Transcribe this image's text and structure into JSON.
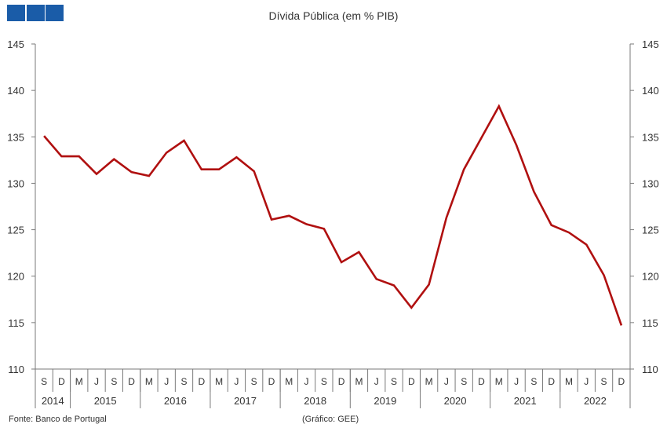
{
  "logo": {
    "color": "#1a5ca8"
  },
  "chart_data": {
    "type": "line",
    "title": "Dívida Pública (em % PIB)",
    "xlabel": "",
    "ylabel": "",
    "ylim": [
      110,
      145
    ],
    "yticks": [
      110,
      115,
      120,
      125,
      130,
      135,
      140,
      145
    ],
    "y_axis_both_sides": true,
    "grid": false,
    "line_color": "#b01010",
    "categories": [
      "S",
      "D",
      "M",
      "J",
      "S",
      "D",
      "M",
      "J",
      "S",
      "D",
      "M",
      "J",
      "S",
      "D",
      "M",
      "J",
      "S",
      "D",
      "M",
      "J",
      "S",
      "D",
      "M",
      "J",
      "S",
      "D",
      "M",
      "J",
      "S",
      "D",
      "M",
      "J",
      "S",
      "D"
    ],
    "years": [
      {
        "label": "2014",
        "span": 2
      },
      {
        "label": "2015",
        "span": 4
      },
      {
        "label": "2016",
        "span": 4
      },
      {
        "label": "2017",
        "span": 4
      },
      {
        "label": "2018",
        "span": 4
      },
      {
        "label": "2019",
        "span": 4
      },
      {
        "label": "2020",
        "span": 4
      },
      {
        "label": "2021",
        "span": 4
      },
      {
        "label": "2022",
        "span": 4
      }
    ],
    "series": [
      {
        "values": [
          135.1,
          132.9,
          132.9,
          131.0,
          132.6,
          131.2,
          130.8,
          133.3,
          134.6,
          131.5,
          131.5,
          132.8,
          131.3,
          126.1,
          126.5,
          125.6,
          125.1,
          121.5,
          122.6,
          119.7,
          119.0,
          116.6,
          119.1,
          126.3,
          131.5,
          134.9,
          138.3,
          134.1,
          129.1,
          125.5,
          124.7,
          123.4,
          120.1,
          114.7
        ]
      }
    ]
  },
  "footer": {
    "source": "Fonte: Banco de Portugal",
    "credit": "(Gráfico: GEE)"
  }
}
